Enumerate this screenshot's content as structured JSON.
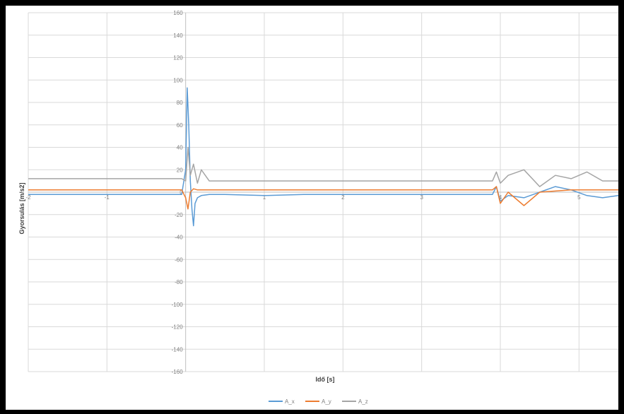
{
  "chart_data": {
    "type": "line",
    "title": "",
    "xlabel": "Idő [s]",
    "ylabel": "Gyorsulás [m/s2]",
    "xlim": [
      -2,
      5.5
    ],
    "ylim": [
      -160,
      160
    ],
    "x_ticks": [
      -2,
      -1,
      0,
      1,
      2,
      3,
      4,
      5
    ],
    "x_tick_labels": [
      "-2",
      "-1",
      "",
      "1",
      "2",
      "3",
      "4",
      "5"
    ],
    "y_ticks": [
      160,
      140,
      120,
      100,
      80,
      60,
      40,
      20,
      0,
      -20,
      -40,
      -60,
      -80,
      -100,
      -120,
      -140,
      -160
    ],
    "grid": true,
    "legend_position": "bottom",
    "series": [
      {
        "name": "A_x",
        "color": "#5B9BD5",
        "x": [
          -2.0,
          -1.5,
          -1.0,
          -0.5,
          -0.05,
          0.0,
          0.02,
          0.04,
          0.06,
          0.08,
          0.1,
          0.12,
          0.15,
          0.2,
          0.3,
          0.5,
          1.0,
          1.5,
          2.0,
          2.5,
          3.0,
          3.5,
          3.9,
          3.95,
          4.0,
          4.1,
          4.3,
          4.5,
          4.7,
          4.9,
          5.1,
          5.3,
          5.5
        ],
        "y": [
          -2,
          -2,
          -2,
          -2,
          -2,
          20,
          93,
          60,
          10,
          -15,
          -30,
          -10,
          -5,
          -3,
          -2,
          -2,
          -3,
          -2,
          -2,
          -2,
          -2,
          -2,
          -2,
          5,
          -8,
          -3,
          -5,
          0,
          5,
          2,
          -3,
          -5,
          -3
        ]
      },
      {
        "name": "A_y",
        "color": "#ED7D31",
        "x": [
          -2.0,
          -1.5,
          -1.0,
          -0.5,
          -0.05,
          0.0,
          0.03,
          0.06,
          0.1,
          0.15,
          0.3,
          0.5,
          1.0,
          1.5,
          2.0,
          2.5,
          3.0,
          3.5,
          3.9,
          3.95,
          4.0,
          4.1,
          4.3,
          4.5,
          4.7,
          4.9,
          5.1,
          5.3,
          5.5
        ],
        "y": [
          2,
          2,
          2,
          2,
          2,
          -5,
          -15,
          0,
          3,
          2,
          2,
          2,
          2,
          2,
          2,
          2,
          2,
          2,
          2,
          5,
          -10,
          0,
          -12,
          0,
          1,
          2,
          2,
          2,
          2
        ]
      },
      {
        "name": "A_z",
        "color": "#A5A5A5",
        "x": [
          -2.0,
          -1.5,
          -1.0,
          -0.5,
          -0.05,
          0.0,
          0.03,
          0.06,
          0.1,
          0.15,
          0.2,
          0.3,
          0.5,
          1.0,
          1.5,
          2.0,
          2.5,
          3.0,
          3.5,
          3.9,
          3.95,
          4.0,
          4.1,
          4.3,
          4.5,
          4.7,
          4.9,
          5.1,
          5.3,
          5.5
        ],
        "y": [
          12,
          12,
          12,
          12,
          12,
          10,
          40,
          15,
          25,
          8,
          20,
          10,
          10,
          10,
          10,
          10,
          10,
          10,
          10,
          10,
          18,
          8,
          15,
          20,
          5,
          15,
          12,
          18,
          10,
          10
        ]
      }
    ]
  }
}
